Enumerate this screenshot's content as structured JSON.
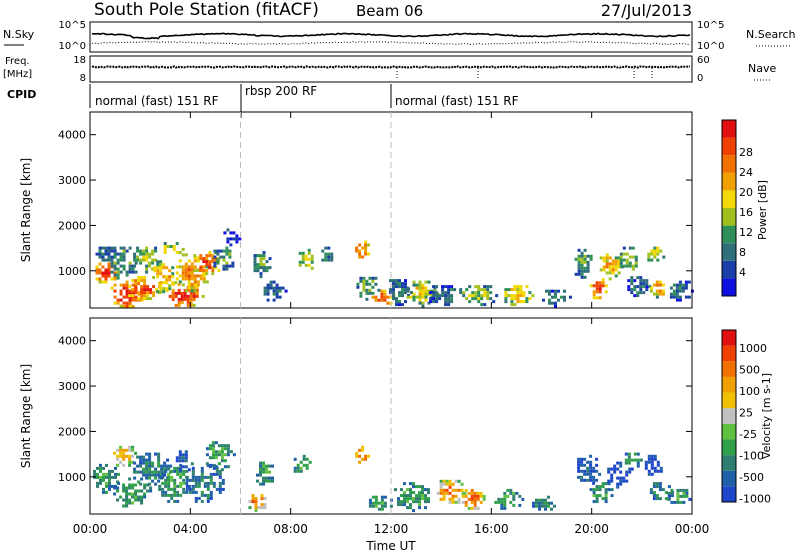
{
  "header": {
    "station": "South Pole Station (fitACF)",
    "beam": "Beam 06",
    "date": "27/Jul/2013"
  },
  "noise_panel": {
    "left_label": "N.Sky",
    "right_label": "N.Search",
    "left_ticks": [
      "10^5",
      "10^0"
    ],
    "right_ticks": [
      "10^5",
      "10^0"
    ]
  },
  "freq_panel": {
    "left_label_1": "Freq.",
    "left_label_2": "[MHz]",
    "right_label": "Nave",
    "left_ticks": [
      "18",
      "8"
    ],
    "right_ticks": [
      "60",
      "0"
    ]
  },
  "cpid": {
    "label": "CPID",
    "segments": [
      {
        "label": "normal (fast) 151 RF",
        "start_hour": 0,
        "end_hour": 6
      },
      {
        "label": "rbsp 200 RF",
        "start_hour": 6,
        "end_hour": 12
      },
      {
        "label": "normal (fast) 151 RF",
        "start_hour": 12,
        "end_hour": 24
      }
    ]
  },
  "x_axis": {
    "label": "Time UT",
    "ticks": [
      "00:00",
      "04:00",
      "08:00",
      "12:00",
      "16:00",
      "20:00",
      "00:00"
    ]
  },
  "power_colorbar": {
    "label": "Power [dB]",
    "ticks": [
      "4",
      "8",
      "12",
      "16",
      "20",
      "24",
      "28"
    ],
    "colors": [
      "#1010e0",
      "#1a3fa8",
      "#2f6f7a",
      "#2f8f5a",
      "#a0c020",
      "#f0d800",
      "#f0a000",
      "#f07000",
      "#f04000",
      "#e01010"
    ]
  },
  "velocity_colorbar": {
    "label": "Velocity [m s-1]",
    "ticks": [
      "1000",
      "500",
      "100",
      "25",
      "-25",
      "-100",
      "-500",
      "-1000"
    ],
    "colors": [
      "#1e46c8",
      "#2060a8",
      "#2f7f70",
      "#2f9f4a",
      "#60c040",
      "#c0c0c0",
      "#f0c000",
      "#f0a000",
      "#f07000",
      "#f04000",
      "#e01010"
    ]
  },
  "chart_data": [
    {
      "type": "heatmap",
      "name": "power",
      "ylabel": "Slant Range [km]",
      "xlabel": "Time UT",
      "xlim": [
        0,
        24
      ],
      "ylim": [
        180,
        4500
      ],
      "yticks": [
        1000,
        2000,
        3000,
        4000
      ],
      "xticks": [
        0,
        4,
        8,
        12,
        16,
        20,
        24
      ],
      "blobs": [
        {
          "t": 0.6,
          "r": 1000,
          "dt": 0.5,
          "dr": 250,
          "lvl": 9
        },
        {
          "t": 0.6,
          "r": 1400,
          "dt": 0.5,
          "dr": 200,
          "lvl": 2
        },
        {
          "t": 1.4,
          "r": 500,
          "dt": 0.7,
          "dr": 350,
          "lvl": 9
        },
        {
          "t": 1.3,
          "r": 1200,
          "dt": 0.6,
          "dr": 400,
          "lvl": 3
        },
        {
          "t": 2.1,
          "r": 650,
          "dt": 0.7,
          "dr": 300,
          "lvl": 8
        },
        {
          "t": 2.2,
          "r": 1300,
          "dt": 0.6,
          "dr": 300,
          "lvl": 4
        },
        {
          "t": 2.9,
          "r": 900,
          "dt": 0.5,
          "dr": 400,
          "lvl": 6
        },
        {
          "t": 3.2,
          "r": 1500,
          "dt": 0.5,
          "dr": 200,
          "lvl": 5
        },
        {
          "t": 3.7,
          "r": 500,
          "dt": 0.8,
          "dr": 300,
          "lvl": 9
        },
        {
          "t": 4.0,
          "r": 1000,
          "dt": 0.7,
          "dr": 450,
          "lvl": 7
        },
        {
          "t": 4.6,
          "r": 1200,
          "dt": 0.6,
          "dr": 300,
          "lvl": 8
        },
        {
          "t": 5.3,
          "r": 1300,
          "dt": 0.5,
          "dr": 300,
          "lvl": 3
        },
        {
          "t": 5.6,
          "r": 1800,
          "dt": 0.4,
          "dr": 200,
          "lvl": 1
        },
        {
          "t": 6.8,
          "r": 1200,
          "dt": 0.4,
          "dr": 300,
          "lvl": 3
        },
        {
          "t": 7.3,
          "r": 600,
          "dt": 0.5,
          "dr": 250,
          "lvl": 2
        },
        {
          "t": 8.6,
          "r": 1300,
          "dt": 0.4,
          "dr": 250,
          "lvl": 5
        },
        {
          "t": 9.4,
          "r": 1400,
          "dt": 0.3,
          "dr": 200,
          "lvl": 2
        },
        {
          "t": 10.8,
          "r": 1500,
          "dt": 0.35,
          "dr": 300,
          "lvl": 7
        },
        {
          "t": 11.0,
          "r": 700,
          "dt": 0.5,
          "dr": 300,
          "lvl": 3
        },
        {
          "t": 11.6,
          "r": 450,
          "dt": 0.5,
          "dr": 200,
          "lvl": 8
        },
        {
          "t": 12.3,
          "r": 600,
          "dt": 0.5,
          "dr": 350,
          "lvl": 2
        },
        {
          "t": 13.2,
          "r": 550,
          "dt": 0.7,
          "dr": 300,
          "lvl": 5
        },
        {
          "t": 14.0,
          "r": 500,
          "dt": 0.6,
          "dr": 250,
          "lvl": 2
        },
        {
          "t": 15.4,
          "r": 500,
          "dt": 0.8,
          "dr": 250,
          "lvl": 4
        },
        {
          "t": 17.0,
          "r": 500,
          "dt": 0.6,
          "dr": 250,
          "lvl": 6
        },
        {
          "t": 18.5,
          "r": 450,
          "dt": 0.6,
          "dr": 200,
          "lvl": 2
        },
        {
          "t": 19.6,
          "r": 1200,
          "dt": 0.4,
          "dr": 350,
          "lvl": 3
        },
        {
          "t": 20.2,
          "r": 650,
          "dt": 0.4,
          "dr": 250,
          "lvl": 8
        },
        {
          "t": 20.7,
          "r": 1150,
          "dt": 0.5,
          "dr": 300,
          "lvl": 6
        },
        {
          "t": 21.4,
          "r": 1300,
          "dt": 0.4,
          "dr": 300,
          "lvl": 4
        },
        {
          "t": 21.8,
          "r": 700,
          "dt": 0.5,
          "dr": 250,
          "lvl": 2
        },
        {
          "t": 22.5,
          "r": 1400,
          "dt": 0.4,
          "dr": 200,
          "lvl": 5
        },
        {
          "t": 22.6,
          "r": 650,
          "dt": 0.4,
          "dr": 200,
          "lvl": 7
        },
        {
          "t": 23.5,
          "r": 600,
          "dt": 0.5,
          "dr": 250,
          "lvl": 2
        }
      ]
    },
    {
      "type": "heatmap",
      "name": "velocity",
      "ylabel": "Slant Range [km]",
      "xlabel": "Time UT",
      "xlim": [
        0,
        24
      ],
      "ylim": [
        180,
        4500
      ],
      "yticks": [
        1000,
        2000,
        3000,
        4000
      ],
      "xticks": [
        0,
        4,
        8,
        12,
        16,
        20,
        24
      ],
      "blobs": [
        {
          "t": 0.6,
          "r": 1000,
          "dt": 0.6,
          "dr": 350,
          "lvl": 3
        },
        {
          "t": 1.3,
          "r": 1500,
          "dt": 0.5,
          "dr": 250,
          "lvl": 7
        },
        {
          "t": 1.6,
          "r": 700,
          "dt": 0.8,
          "dr": 350,
          "lvl": 3
        },
        {
          "t": 2.4,
          "r": 1200,
          "dt": 0.8,
          "dr": 400,
          "lvl": 2
        },
        {
          "t": 3.3,
          "r": 900,
          "dt": 0.7,
          "dr": 450,
          "lvl": 3
        },
        {
          "t": 3.7,
          "r": 1400,
          "dt": 0.4,
          "dr": 250,
          "lvl": 1
        },
        {
          "t": 4.5,
          "r": 900,
          "dt": 0.8,
          "dr": 450,
          "lvl": 2
        },
        {
          "t": 5.1,
          "r": 1500,
          "dt": 0.6,
          "dr": 350,
          "lvl": 3
        },
        {
          "t": 6.6,
          "r": 500,
          "dt": 0.4,
          "dr": 250,
          "lvl": 8
        },
        {
          "t": 6.9,
          "r": 1100,
          "dt": 0.4,
          "dr": 300,
          "lvl": 3
        },
        {
          "t": 8.4,
          "r": 1300,
          "dt": 0.4,
          "dr": 250,
          "lvl": 3
        },
        {
          "t": 10.8,
          "r": 1500,
          "dt": 0.35,
          "dr": 250,
          "lvl": 8
        },
        {
          "t": 11.5,
          "r": 450,
          "dt": 0.5,
          "dr": 200,
          "lvl": 3
        },
        {
          "t": 12.8,
          "r": 600,
          "dt": 0.8,
          "dr": 350,
          "lvl": 3
        },
        {
          "t": 14.3,
          "r": 700,
          "dt": 0.6,
          "dr": 300,
          "lvl": 8
        },
        {
          "t": 15.2,
          "r": 550,
          "dt": 0.5,
          "dr": 250,
          "lvl": 9
        },
        {
          "t": 16.6,
          "r": 550,
          "dt": 0.6,
          "dr": 250,
          "lvl": 3
        },
        {
          "t": 18.0,
          "r": 450,
          "dt": 0.5,
          "dr": 200,
          "lvl": 2
        },
        {
          "t": 19.8,
          "r": 1200,
          "dt": 0.5,
          "dr": 350,
          "lvl": 1
        },
        {
          "t": 20.3,
          "r": 700,
          "dt": 0.5,
          "dr": 250,
          "lvl": 3
        },
        {
          "t": 21.0,
          "r": 1100,
          "dt": 0.5,
          "dr": 300,
          "lvl": 0
        },
        {
          "t": 21.6,
          "r": 1400,
          "dt": 0.4,
          "dr": 200,
          "lvl": 3
        },
        {
          "t": 22.4,
          "r": 1300,
          "dt": 0.4,
          "dr": 250,
          "lvl": 0
        },
        {
          "t": 22.7,
          "r": 700,
          "dt": 0.5,
          "dr": 250,
          "lvl": 2
        },
        {
          "t": 23.4,
          "r": 600,
          "dt": 0.5,
          "dr": 200,
          "lvl": 3
        }
      ]
    }
  ]
}
